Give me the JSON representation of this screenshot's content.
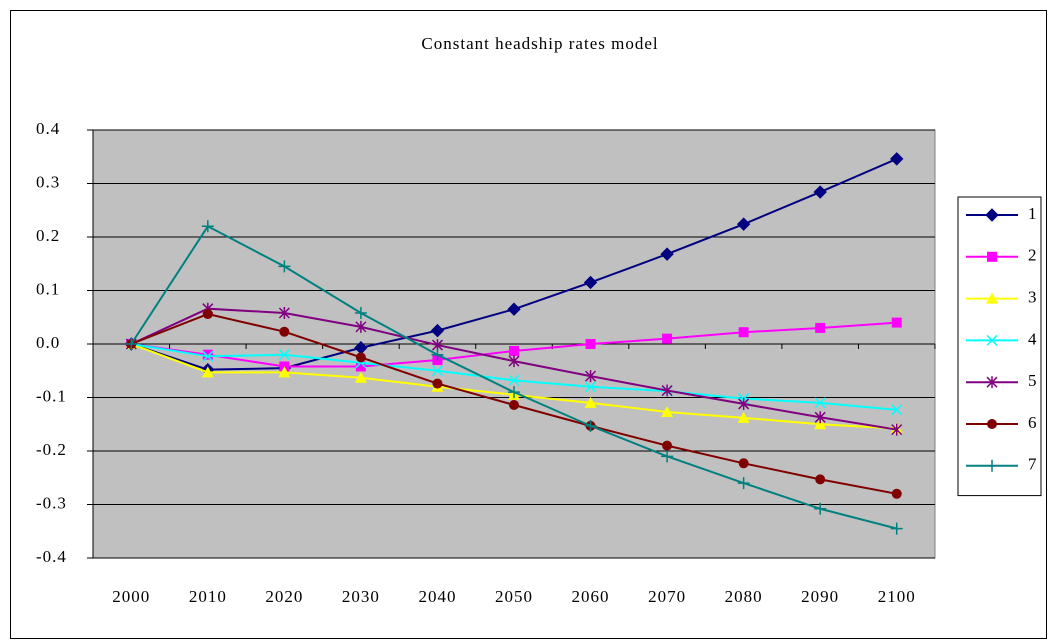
{
  "chart_data": {
    "type": "line",
    "title": "Constant headship rates model",
    "categories": [
      "2000",
      "2010",
      "2020",
      "2030",
      "2040",
      "2050",
      "2060",
      "2070",
      "2080",
      "2090",
      "2100"
    ],
    "ylim": [
      -0.4,
      0.4
    ],
    "yticks": [
      0.4,
      0.3,
      0.2,
      0.1,
      {
        "value": 0,
        "label": "0.0"
      },
      -0.1,
      -0.2,
      -0.3,
      -0.4
    ],
    "grid": true,
    "legend": "right",
    "plot_background": "#c0c0c0",
    "series": [
      {
        "name": "1",
        "color": "#000080",
        "marker": "diamond",
        "values": [
          0,
          -0.048,
          -0.045,
          -0.007,
          0.025,
          0.065,
          0.115,
          0.168,
          0.224,
          0.284,
          0.346
        ]
      },
      {
        "name": "2",
        "color": "#ff00ff",
        "marker": "square",
        "values": [
          0,
          -0.02,
          -0.042,
          -0.042,
          -0.03,
          -0.013,
          0.0,
          0.01,
          0.022,
          0.03,
          0.04
        ]
      },
      {
        "name": "3",
        "color": "#ffff00",
        "marker": "triangle",
        "values": [
          0,
          -0.053,
          -0.053,
          -0.063,
          -0.08,
          -0.095,
          -0.11,
          -0.127,
          -0.138,
          -0.15,
          -0.158
        ]
      },
      {
        "name": "4",
        "color": "#00ffff",
        "marker": "x",
        "values": [
          0,
          -0.023,
          -0.02,
          -0.035,
          -0.05,
          -0.068,
          -0.08,
          -0.088,
          -0.102,
          -0.11,
          -0.123
        ]
      },
      {
        "name": "5",
        "color": "#800080",
        "marker": "asterisk",
        "values": [
          0,
          0.066,
          0.058,
          0.032,
          -0.002,
          -0.032,
          -0.06,
          -0.087,
          -0.112,
          -0.137,
          -0.16
        ]
      },
      {
        "name": "6",
        "color": "#800000",
        "marker": "circle",
        "values": [
          0,
          0.056,
          0.023,
          -0.025,
          -0.074,
          -0.114,
          -0.153,
          -0.19,
          -0.223,
          -0.253,
          -0.28
        ]
      },
      {
        "name": "7",
        "color": "#008080",
        "marker": "plus",
        "values": [
          0,
          0.22,
          0.145,
          0.058,
          -0.02,
          -0.09,
          -0.153,
          -0.21,
          -0.26,
          -0.308,
          -0.345
        ]
      }
    ]
  }
}
